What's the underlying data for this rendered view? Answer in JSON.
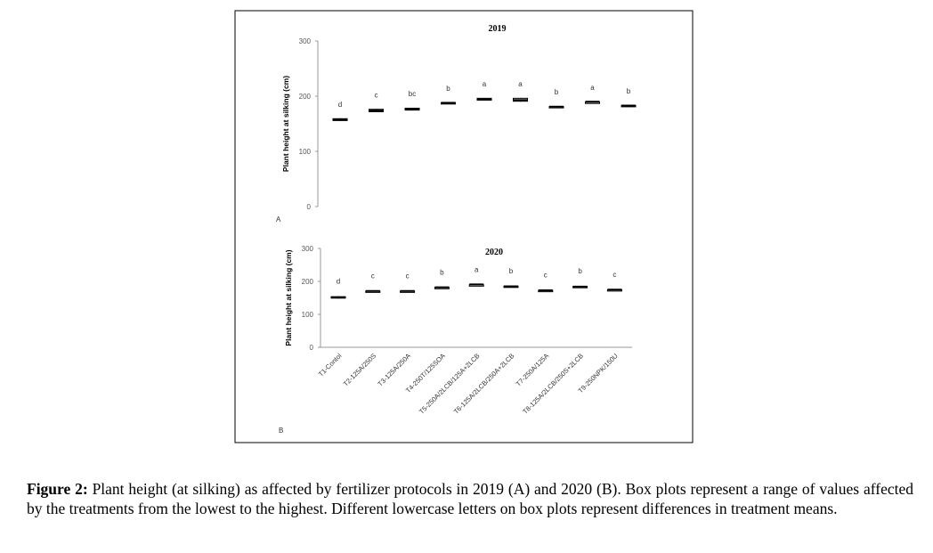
{
  "chart_data": [
    {
      "type": "box",
      "panel": "A",
      "title": "2019",
      "ylabel": "Plant height at silking (cm)",
      "ylim": [
        0,
        300
      ],
      "yticks": [
        "0",
        "100",
        "200",
        "300"
      ],
      "categories": [
        "T1-Contol",
        "T2-125A/250S",
        "T3-125A/250A",
        "T4-250T/125SOA",
        "T5-250A/2LCB/125A+2LCB",
        "T6-125A/2LCB/250A+2LCB",
        "T7-250A/125A",
        "T8-125A/2LCB/250S+2LCB",
        "T9-250NPK/150U"
      ],
      "series": [
        {
          "name": "2019",
          "median": [
            158,
            174,
            176,
            188,
            194,
            193,
            181,
            190,
            183
          ],
          "min": [
            155,
            171,
            174,
            187,
            192,
            190,
            180,
            189,
            182
          ],
          "max": [
            160,
            177,
            179,
            189,
            197,
            197,
            182,
            190,
            184
          ]
        }
      ],
      "letters": [
        "d",
        "c",
        "bc",
        "b",
        "a",
        "a",
        "b",
        "a",
        "b"
      ]
    },
    {
      "type": "box",
      "panel": "B",
      "title": "2020",
      "ylabel": "Plant height at silking (cm)",
      "ylim": [
        0,
        300
      ],
      "yticks": [
        "0",
        "100",
        "200",
        "300"
      ],
      "categories": [
        "T1-Contol",
        "T2-125A/250S",
        "T3-125A/250A",
        "T4-250T/125SOA",
        "T5-250A/2LCB/125A+2LCB",
        "T6-125A/2LCB/250A+2LCB",
        "T7-250A/125A",
        "T8-125A/2LCB/250S+2LCB",
        "T9-250NPK/150U"
      ],
      "series": [
        {
          "name": "2020",
          "median": [
            151,
            171,
            171,
            182,
            191,
            185,
            173,
            184,
            175
          ],
          "min": [
            148,
            170,
            170,
            181,
            190,
            183,
            172,
            182,
            174
          ],
          "max": [
            155,
            172,
            172,
            183,
            191,
            187,
            174,
            186,
            176
          ]
        }
      ],
      "letters": [
        "d",
        "c",
        "c",
        "b",
        "a",
        "b",
        "c",
        "b",
        "c"
      ]
    }
  ],
  "caption": {
    "label": "Figure 2:",
    "text": " Plant height (at silking) as affected by fertilizer protocols in 2019 (A) and 2020 (B). Box plots represent a range of values affected by the treatments from the lowest to the highest. Different lowercase letters on box plots represent differences in treatment means."
  },
  "colors": {
    "box": "#000000",
    "axis": "#999999"
  }
}
